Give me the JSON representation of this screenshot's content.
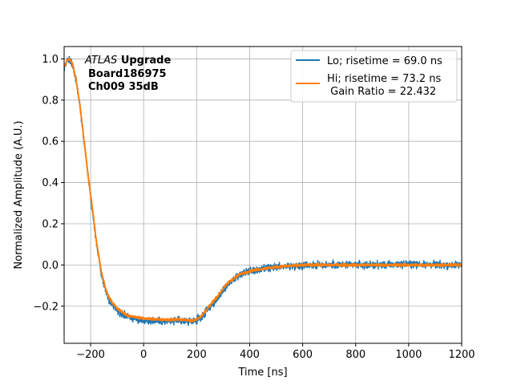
{
  "chart_data": {
    "type": "line",
    "xlabel": "Time [ns]",
    "ylabel": "Normalized Amplitude (A.U.)",
    "xlim": [
      -300,
      1200
    ],
    "ylim": [
      -0.38,
      1.06
    ],
    "xticks": [
      -200,
      0,
      200,
      400,
      600,
      800,
      1000,
      1200
    ],
    "xtick_labels": [
      "−200",
      "0",
      "200",
      "400",
      "600",
      "800",
      "1000",
      "1200"
    ],
    "yticks": [
      -0.2,
      0.0,
      0.2,
      0.4,
      0.6,
      0.8,
      1.0
    ],
    "ytick_labels": [
      "−0.2",
      "0.0",
      "0.2",
      "0.4",
      "0.6",
      "0.8",
      "1.0"
    ],
    "grid": true,
    "legend_position": "top-right",
    "annotation": {
      "atlas": "ATLAS",
      "upgrade": "Upgrade",
      "board": "Board186975",
      "channel": "Ch009 35dB"
    },
    "series": [
      {
        "name": "Lo; risetime = 69.0 ns",
        "color": "#1f77b4",
        "noise": 0.012,
        "x": [
          -300,
          -290,
          -280,
          -270,
          -260,
          -250,
          -240,
          -230,
          -220,
          -210,
          -200,
          -190,
          -180,
          -170,
          -160,
          -150,
          -140,
          -130,
          -120,
          -100,
          -80,
          -60,
          -40,
          -20,
          0,
          20,
          50,
          100,
          150,
          180,
          200,
          210,
          220,
          240,
          260,
          280,
          300,
          320,
          340,
          360,
          380,
          400,
          420,
          450,
          480,
          500,
          550,
          600,
          700,
          800,
          900,
          1000,
          1100,
          1200
        ],
        "y": [
          0.95,
          0.99,
          1.0,
          0.98,
          0.93,
          0.86,
          0.77,
          0.66,
          0.55,
          0.44,
          0.33,
          0.23,
          0.12,
          0.04,
          -0.04,
          -0.09,
          -0.14,
          -0.17,
          -0.19,
          -0.22,
          -0.24,
          -0.25,
          -0.26,
          -0.26,
          -0.27,
          -0.27,
          -0.27,
          -0.27,
          -0.27,
          -0.275,
          -0.27,
          -0.26,
          -0.25,
          -0.22,
          -0.19,
          -0.16,
          -0.12,
          -0.09,
          -0.07,
          -0.05,
          -0.04,
          -0.03,
          -0.025,
          -0.02,
          -0.015,
          -0.01,
          -0.005,
          0.0,
          0.0,
          0.0,
          0.0,
          0.005,
          0.0,
          0.0
        ]
      },
      {
        "name": "Hi; risetime = 73.2 ns",
        "name2": " Gain Ratio = 22.432",
        "color": "#ff7f0e",
        "noise": 0.004,
        "x": [
          -300,
          -290,
          -280,
          -270,
          -260,
          -250,
          -240,
          -230,
          -220,
          -210,
          -200,
          -190,
          -180,
          -170,
          -160,
          -150,
          -140,
          -130,
          -120,
          -100,
          -80,
          -60,
          -40,
          -20,
          0,
          20,
          50,
          100,
          150,
          180,
          200,
          210,
          220,
          240,
          260,
          280,
          300,
          320,
          340,
          360,
          380,
          400,
          420,
          450,
          480,
          500,
          550,
          600,
          700,
          800,
          900,
          1000,
          1100,
          1200
        ],
        "y": [
          0.96,
          0.99,
          1.0,
          0.98,
          0.93,
          0.86,
          0.77,
          0.66,
          0.55,
          0.44,
          0.34,
          0.24,
          0.13,
          0.05,
          -0.03,
          -0.08,
          -0.13,
          -0.16,
          -0.18,
          -0.21,
          -0.23,
          -0.245,
          -0.25,
          -0.255,
          -0.26,
          -0.26,
          -0.265,
          -0.265,
          -0.265,
          -0.27,
          -0.265,
          -0.255,
          -0.245,
          -0.215,
          -0.18,
          -0.15,
          -0.115,
          -0.085,
          -0.065,
          -0.048,
          -0.038,
          -0.03,
          -0.024,
          -0.018,
          -0.013,
          -0.01,
          -0.005,
          0.0,
          0.0,
          0.0,
          0.0,
          0.0,
          0.0,
          0.0
        ]
      }
    ]
  }
}
